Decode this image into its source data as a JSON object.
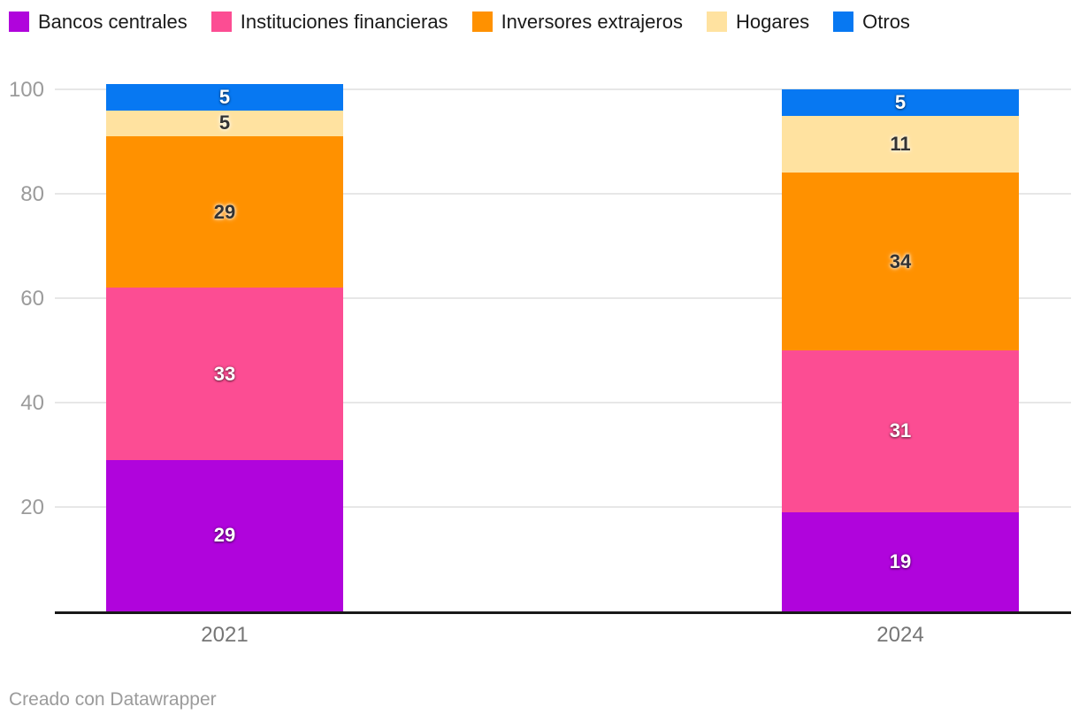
{
  "chart_data": {
    "type": "bar",
    "stacked": true,
    "orientation": "vertical",
    "categories": [
      "2021",
      "2024"
    ],
    "series": [
      {
        "name": "Bancos centrales",
        "color": "#b004dc",
        "label_style": "light",
        "values": [
          29,
          19
        ]
      },
      {
        "name": "Instituciones financieras",
        "color": "#fc4d93",
        "label_style": "light",
        "values": [
          33,
          31
        ]
      },
      {
        "name": "Inversores extrajeros",
        "color": "#ff9100",
        "label_style": "dark",
        "values": [
          29,
          34
        ]
      },
      {
        "name": "Hogares",
        "color": "#ffe2a0",
        "label_style": "dark",
        "values": [
          5,
          11
        ]
      },
      {
        "name": "Otros",
        "color": "#0778f2",
        "label_style": "light",
        "values": [
          5,
          5
        ]
      }
    ],
    "totals": [
      101,
      100
    ],
    "ylim": [
      0,
      100
    ],
    "yticks": [
      20,
      40,
      60,
      80,
      100
    ],
    "grid": true,
    "legend_position": "top",
    "value_labels_shown": true
  },
  "legend": {
    "items": [
      {
        "label": "Bancos centrales",
        "color": "#b004dc"
      },
      {
        "label": "Instituciones financieras",
        "color": "#fc4d93"
      },
      {
        "label": "Inversores extrajeros",
        "color": "#ff9100"
      },
      {
        "label": "Hogares",
        "color": "#ffe2a0"
      },
      {
        "label": "Otros",
        "color": "#0778f2"
      }
    ]
  },
  "axis": {
    "tick_color": "#9b9b9b",
    "grid_color": "#e7e7e7",
    "baseline_color": "#191919",
    "category_label_color": "#767676"
  },
  "footer": {
    "credit": "Creado con Datawrapper"
  }
}
